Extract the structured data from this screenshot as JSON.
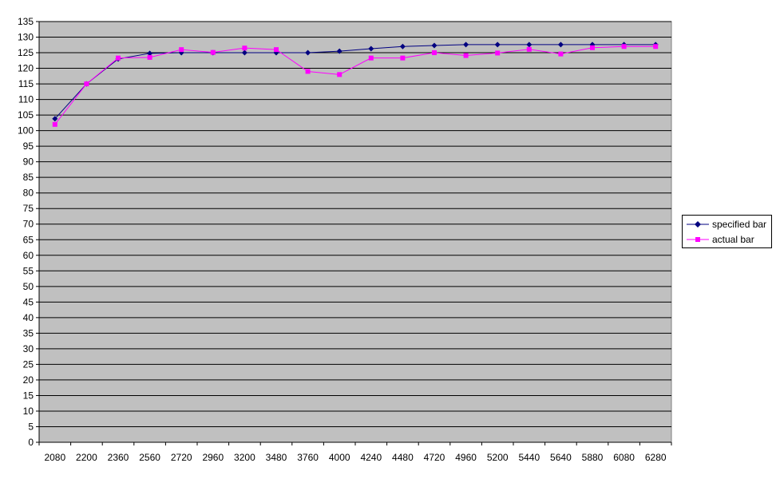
{
  "chart_data": {
    "type": "line",
    "title": "",
    "xlabel": "",
    "ylabel": "",
    "categories": [
      "2080",
      "2200",
      "2360",
      "2560",
      "2720",
      "2960",
      "3200",
      "3480",
      "3760",
      "4000",
      "4240",
      "4480",
      "4720",
      "4960",
      "5200",
      "5440",
      "5640",
      "5880",
      "6080",
      "6280"
    ],
    "ylim": [
      0,
      135
    ],
    "ytick_step": 5,
    "grid": true,
    "legend_position": "right",
    "plot_background": "#c0c0c0",
    "series": [
      {
        "name": "specified bar",
        "color": "#000080",
        "marker": "diamond",
        "values": [
          103.8,
          115,
          123,
          124.8,
          125,
          125,
          125,
          125,
          125,
          125.5,
          126.3,
          127,
          127.3,
          127.6,
          127.6,
          127.6,
          127.6,
          127.6,
          127.6,
          127.6
        ]
      },
      {
        "name": "actual bar",
        "color": "#ff00ff",
        "marker": "square",
        "values": [
          102,
          115,
          123.3,
          123.5,
          126,
          125.1,
          126.5,
          126,
          119,
          118,
          123.3,
          123.3,
          125,
          124.1,
          124.9,
          126.1,
          124.6,
          126.6,
          127,
          127
        ]
      }
    ]
  }
}
